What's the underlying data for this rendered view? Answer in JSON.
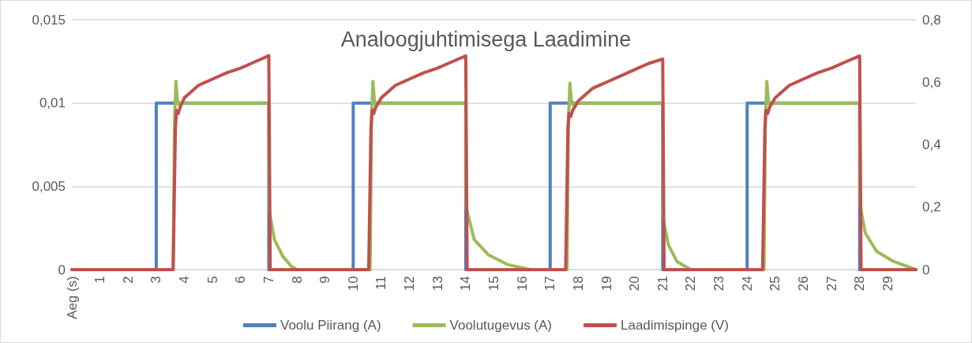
{
  "chart_data": {
    "type": "line",
    "title": "Analoogjuhtimisega Laadimine",
    "xlim": [
      0,
      30
    ],
    "xticks": [
      {
        "value": 0,
        "label": "Aeg (s)"
      },
      1,
      2,
      3,
      4,
      5,
      6,
      7,
      8,
      9,
      10,
      11,
      12,
      13,
      14,
      15,
      16,
      17,
      18,
      19,
      20,
      21,
      22,
      23,
      24,
      25,
      26,
      27,
      28,
      29
    ],
    "ylim": [
      0,
      0.015
    ],
    "yticks": [
      0,
      {
        "value": 0.005,
        "label": "0,005"
      },
      {
        "value": 0.01,
        "label": "0,01"
      },
      {
        "value": 0.015,
        "label": "0,015"
      }
    ],
    "y2lim": [
      0,
      0.8
    ],
    "y2ticks": [
      0,
      {
        "value": 0.2,
        "label": "0,2"
      },
      {
        "value": 0.4,
        "label": "0,4"
      },
      {
        "value": 0.6,
        "label": "0,6"
      },
      {
        "value": 0.8,
        "label": "0,8"
      }
    ],
    "grid": "y",
    "legend": "bottom",
    "marker": "none",
    "line_style": "solid",
    "series": [
      {
        "name": "Voolu Piirang (A)",
        "color": "#4f81bd",
        "x": [
          0,
          3,
          3,
          7,
          7,
          10,
          10,
          14,
          14,
          17,
          17,
          21,
          21,
          24,
          24,
          28,
          28,
          30
        ],
        "values": [
          0,
          0,
          0.01,
          0.01,
          0,
          0,
          0.01,
          0.01,
          0,
          0,
          0.01,
          0.01,
          0,
          0,
          0.01,
          0.01,
          0,
          0
        ]
      },
      {
        "name": "Voolutugevus (A)",
        "color": "#9bbb59",
        "x": [
          0,
          3.6,
          3.65,
          3.7,
          3.75,
          3.8,
          3.9,
          7,
          7.02,
          7.2,
          7.5,
          7.8,
          8,
          10.6,
          10.65,
          10.7,
          10.75,
          10.8,
          10.9,
          14,
          14.02,
          14.3,
          14.8,
          15.5,
          16.3,
          17.6,
          17.65,
          17.7,
          17.75,
          17.8,
          17.9,
          21,
          21.02,
          21.2,
          21.5,
          22,
          24.6,
          24.65,
          24.7,
          24.75,
          24.8,
          24.9,
          28,
          28.02,
          28.2,
          28.6,
          29.2,
          30
        ],
        "values": [
          0,
          0,
          0.009,
          0.0113,
          0.0102,
          0.0099,
          0.01,
          0.01,
          0.0035,
          0.0018,
          0.0008,
          0.0002,
          0,
          0,
          0.009,
          0.0113,
          0.0102,
          0.0099,
          0.01,
          0.01,
          0.0037,
          0.0018,
          0.0009,
          0.0003,
          0,
          0,
          0.009,
          0.0112,
          0.0102,
          0.0099,
          0.01,
          0.01,
          0.003,
          0.0015,
          0.0005,
          0,
          0,
          0.009,
          0.0113,
          0.0102,
          0.0099,
          0.01,
          0.01,
          0.0038,
          0.0022,
          0.0011,
          0.0005,
          0
        ]
      },
      {
        "name": "Laadimispinge (V)",
        "color": "#c0504d",
        "axis": "y2",
        "x": [
          0,
          3.6,
          3.68,
          3.72,
          3.78,
          3.85,
          4,
          4.5,
          5,
          5.5,
          6,
          6.5,
          7,
          7.05,
          10.55,
          10.63,
          10.67,
          10.73,
          10.8,
          11,
          11.5,
          12,
          12.5,
          13,
          13.5,
          14,
          14.05,
          17.55,
          17.63,
          17.67,
          17.73,
          17.8,
          18,
          18.5,
          19,
          19.5,
          20,
          20.5,
          21,
          21.05,
          24.55,
          24.63,
          24.67,
          24.73,
          24.8,
          25,
          25.5,
          26,
          26.5,
          27,
          27.5,
          28,
          28.05,
          30
        ],
        "values": [
          0,
          0,
          0.45,
          0.51,
          0.5,
          0.52,
          0.55,
          0.59,
          0.61,
          0.63,
          0.645,
          0.665,
          0.685,
          0,
          0,
          0.45,
          0.51,
          0.5,
          0.52,
          0.55,
          0.59,
          0.61,
          0.63,
          0.645,
          0.665,
          0.684,
          0,
          0,
          0.45,
          0.5,
          0.49,
          0.51,
          0.54,
          0.58,
          0.6,
          0.62,
          0.64,
          0.66,
          0.674,
          0,
          0,
          0.45,
          0.51,
          0.5,
          0.52,
          0.55,
          0.59,
          0.61,
          0.63,
          0.645,
          0.665,
          0.684,
          0,
          0
        ]
      }
    ]
  }
}
